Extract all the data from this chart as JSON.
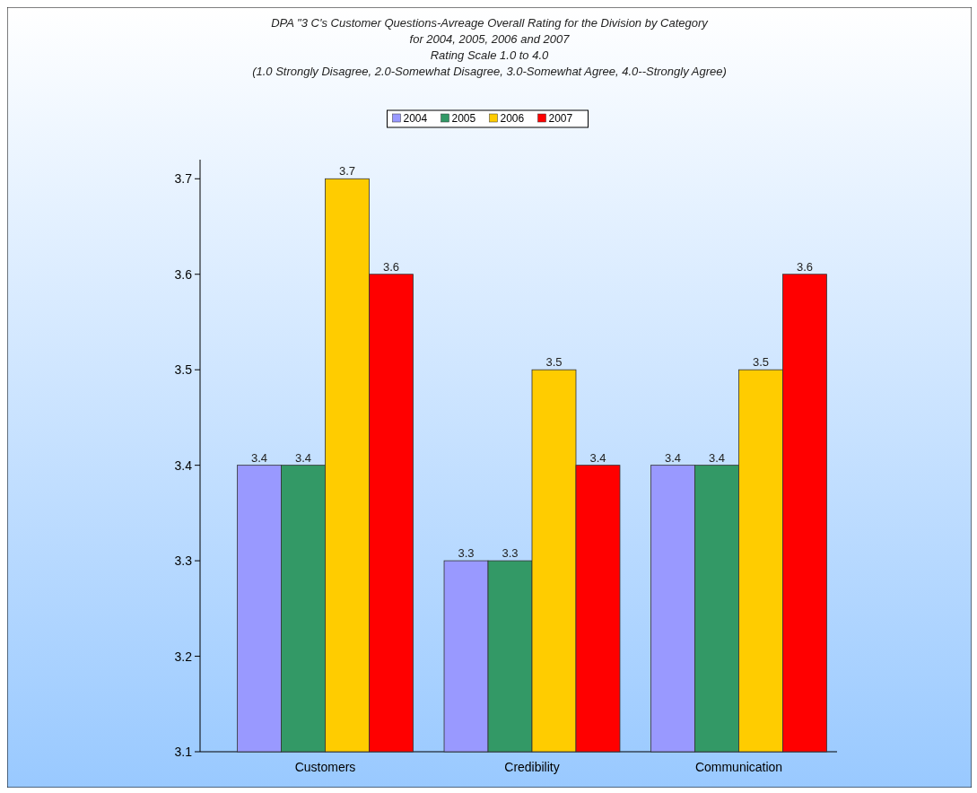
{
  "chart_data": {
    "type": "bar",
    "title": "DPA \"3 C's Customer Questions-Avreage Overall Rating for the Division by Category\nfor 2004, 2005, 2006 and 2007",
    "subtitle": "Rating Scale 1.0 to 4.0\n(1.0 Strongly Disagree, 2.0-Somewhat Disagree, 3.0-Somewhat Agree, 4.0--Strongly Agree)",
    "categories": [
      "Customers",
      "Credibility",
      "Communication"
    ],
    "series": [
      {
        "name": "2004",
        "color": "#9999ff",
        "values": [
          3.4,
          3.3,
          3.4
        ]
      },
      {
        "name": "2005",
        "color": "#339966",
        "values": [
          3.4,
          3.3,
          3.4
        ]
      },
      {
        "name": "2006",
        "color": "#ffcc00",
        "values": [
          3.7,
          3.5,
          3.5
        ]
      },
      {
        "name": "2007",
        "color": "#ff0000",
        "values": [
          3.6,
          3.4,
          3.6
        ]
      }
    ],
    "ylim": [
      3.1,
      3.72
    ],
    "yticks": [
      3.1,
      3.2,
      3.3,
      3.4,
      3.5,
      3.6,
      3.7
    ],
    "data_labels": true,
    "legend": "top",
    "grid": false
  }
}
